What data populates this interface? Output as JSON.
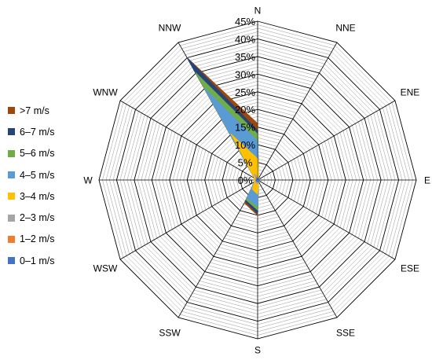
{
  "chart_data": {
    "type": "radar",
    "directions": [
      "N",
      "NNE",
      "ENE",
      "E",
      "ESE",
      "SSE",
      "S",
      "SSW",
      "WSW",
      "W",
      "WNW",
      "NNW"
    ],
    "radial_ticks": [
      "0%",
      "5%",
      "10%",
      "15%",
      "20%",
      "25%",
      "30%",
      "35%",
      "40%",
      "45%"
    ],
    "rmax": 45,
    "series": [
      {
        "name": ">7 m/s",
        "color": "#9e480e",
        "values": [
          16,
          0.5,
          0.5,
          0.5,
          0.5,
          0.5,
          10,
          7.5,
          1,
          1,
          1,
          40
        ]
      },
      {
        "name": "6–7 m/s",
        "color": "#264478",
        "values": [
          14,
          0.5,
          0.5,
          0.5,
          0.5,
          0.5,
          9.5,
          7,
          1,
          1,
          1,
          40
        ]
      },
      {
        "name": "5–6 m/s",
        "color": "#70ad47",
        "values": [
          13,
          0.5,
          0.5,
          0.5,
          0.5,
          0.5,
          8.5,
          6.5,
          1,
          1,
          1,
          35
        ]
      },
      {
        "name": "4–5 m/s",
        "color": "#5b9bd5",
        "values": [
          11,
          0.5,
          0.5,
          0.5,
          0.5,
          0.5,
          7.5,
          6,
          1,
          1,
          1,
          30
        ]
      },
      {
        "name": "3–4 m/s",
        "color": "#ffc000",
        "values": [
          6,
          0.5,
          0.5,
          0.5,
          0.5,
          0.5,
          4,
          3,
          1,
          1,
          1,
          15
        ]
      },
      {
        "name": "2–3 m/s",
        "color": "#a5a5a5",
        "values": [
          1,
          0.5,
          0.5,
          0.5,
          0.5,
          0.5,
          1,
          1,
          0.5,
          0.5,
          0.5,
          2
        ]
      },
      {
        "name": "1–2 m/s",
        "color": "#ed7d31",
        "values": [
          0.5,
          0.5,
          0.5,
          0.5,
          0.5,
          0.5,
          0.5,
          0.5,
          0.5,
          0.5,
          0.5,
          1
        ]
      },
      {
        "name": "0–1 m/s",
        "color": "#4472c4",
        "values": [
          0.5,
          0.5,
          0.5,
          0.5,
          0.5,
          0.5,
          0.5,
          0.5,
          0.5,
          0.5,
          0.5,
          0.5
        ]
      }
    ]
  }
}
